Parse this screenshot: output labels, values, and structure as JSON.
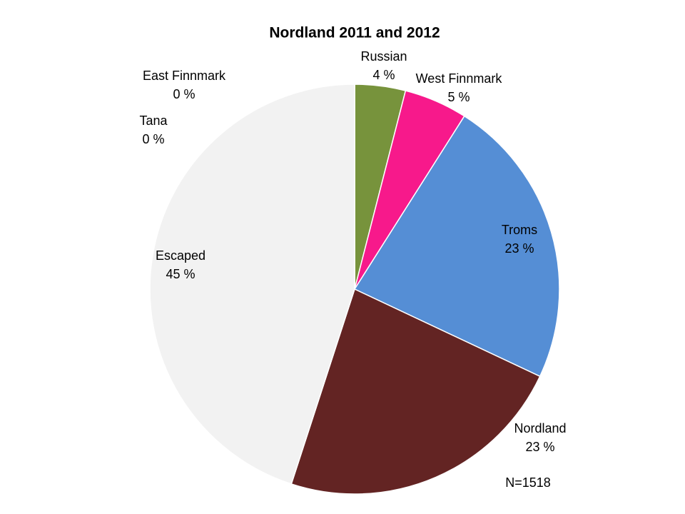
{
  "chart_data": {
    "type": "pie",
    "title": "Nordland 2011 and 2012",
    "categories": [
      "Russian",
      "West Finnmark",
      "Troms",
      "Nordland",
      "Escaped",
      "Tana",
      "East Finnmark"
    ],
    "values": [
      4,
      5,
      23,
      23,
      45,
      0,
      0
    ],
    "value_labels": [
      "4 %",
      "5 %",
      "23 %",
      "23 %",
      "45 %",
      "0 %",
      "0 %"
    ],
    "colors": [
      "#77933c",
      "#f7198b",
      "#558ed5",
      "#632423",
      "#f2f2f2",
      "#ffc000",
      "#7f7f7f"
    ],
    "annotation": "N=1518"
  }
}
